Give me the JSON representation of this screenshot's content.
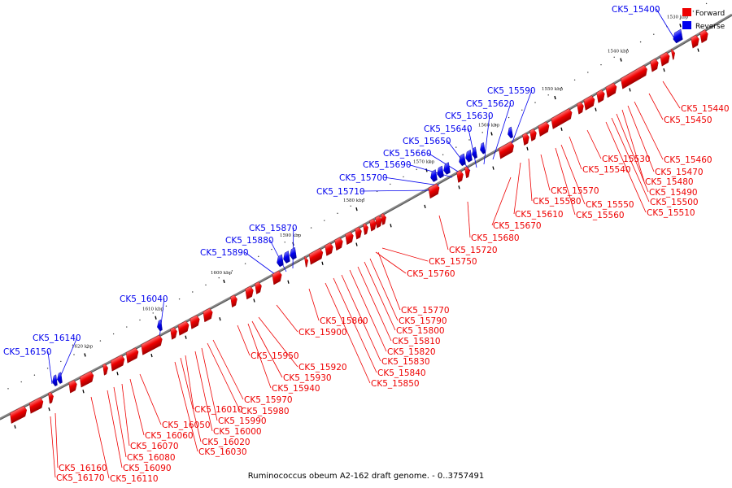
{
  "caption": "Ruminococcus obeum A2-162 draft genome. - 0..3757491",
  "legend": [
    {
      "label": "Forward",
      "color": "#ee0000"
    },
    {
      "label": "Reverse",
      "color": "#0000ee"
    }
  ],
  "ticks": [
    "1530 kbp",
    "1540 kbp",
    "1550 kbp",
    "1560 kbp",
    "1570 kbp",
    "1580 kbp",
    "1590 kbp",
    "1600 kbp",
    "1610 kbp",
    "1620 kbp"
  ],
  "forward_labels": [
    "CK5_15440",
    "CK5_15450",
    "CK5_15460",
    "CK5_15470",
    "CK5_15480",
    "CK5_15490",
    "CK5_15500",
    "CK5_15510",
    "CK5_15530",
    "CK5_15540",
    "CK5_15550",
    "CK5_15560",
    "CK5_15570",
    "CK5_15580",
    "CK5_15610",
    "CK5_15670",
    "CK5_15680",
    "CK5_15720",
    "CK5_15750",
    "CK5_15760",
    "CK5_15770",
    "CK5_15790",
    "CK5_15800",
    "CK5_15810",
    "CK5_15820",
    "CK5_15830",
    "CK5_15840",
    "CK5_15850",
    "CK5_15860",
    "CK5_15900",
    "CK5_15920",
    "CK5_15930",
    "CK5_15940",
    "CK5_15950",
    "CK5_15970",
    "CK5_15980",
    "CK5_15990",
    "CK5_16000",
    "CK5_16010",
    "CK5_16020",
    "CK5_16030",
    "CK5_16050",
    "CK5_16060",
    "CK5_16070",
    "CK5_16080",
    "CK5_16090",
    "CK5_16110",
    "CK5_16160",
    "CK5_16170"
  ],
  "reverse_labels": [
    "CK5_15400",
    "CK5_15590",
    "CK5_15620",
    "CK5_15630",
    "CK5_15640",
    "CK5_15650",
    "CK5_15660",
    "CK5_15690",
    "CK5_15700",
    "CK5_15710",
    "CK5_15870",
    "CK5_15880",
    "CK5_15890",
    "CK5_16040",
    "CK5_16140",
    "CK5_16150"
  ],
  "colors": {
    "forward": "#ee0000",
    "reverse": "#0000ee",
    "backbone": "#888888"
  }
}
